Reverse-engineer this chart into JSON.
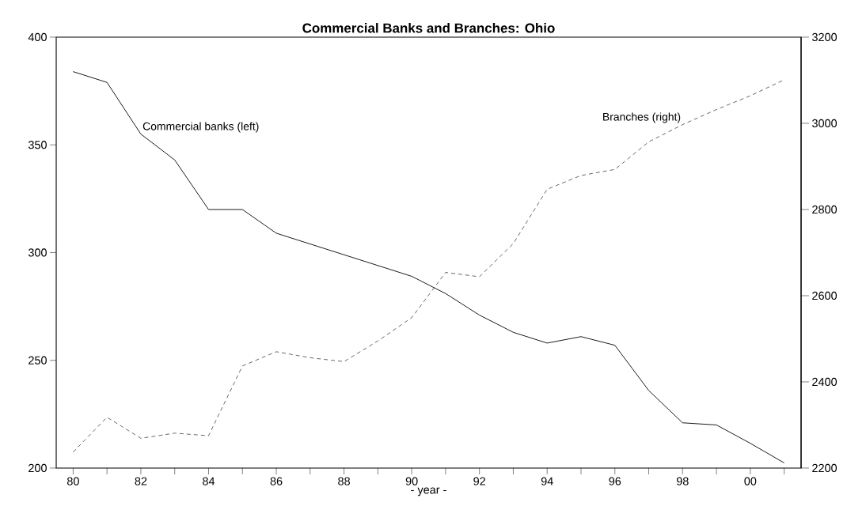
{
  "chart_data": {
    "type": "line",
    "title": "Commercial Banks and Branches: Ohio",
    "xlabel": "- year -",
    "x": [
      1980,
      1981,
      1982,
      1983,
      1984,
      1985,
      1986,
      1987,
      1988,
      1989,
      1990,
      1991,
      1992,
      1993,
      1994,
      1995,
      1996,
      1997,
      1998,
      1999,
      2000,
      2001
    ],
    "series": [
      {
        "name": "Commercial banks (left)",
        "color": "#000000",
        "line_style": "solid",
        "values": [
          384,
          379,
          355,
          343,
          320,
          320,
          309,
          304,
          299,
          294,
          289,
          281,
          271,
          263,
          258,
          261,
          257,
          236,
          221,
          220,
          211.5,
          202.4
        ]
      },
      {
        "name": "Branches (right)",
        "color": "#000000",
        "line_style": "dashed",
        "axis": "y2",
        "values": [
          2237,
          2318,
          2269,
          2281,
          2275,
          2437,
          2470,
          2456,
          2447,
          2495,
          2549,
          2654,
          2644,
          2721,
          2847,
          2879,
          2893,
          2957,
          2997,
          3032,
          3064,
          3101
        ]
      }
    ],
    "xlim": [
      1979.5,
      2001.5
    ],
    "xticks": [
      {
        "value": 1980,
        "label": "80"
      },
      {
        "value": 1981,
        "label": null
      },
      {
        "value": 1982,
        "label": "82"
      },
      {
        "value": 1983,
        "label": null
      },
      {
        "value": 1984,
        "label": "84"
      },
      {
        "value": 1985,
        "label": null
      },
      {
        "value": 1986,
        "label": "86"
      },
      {
        "value": 1987,
        "label": null
      },
      {
        "value": 1988,
        "label": "88"
      },
      {
        "value": 1989,
        "label": null
      },
      {
        "value": 1990,
        "label": "90"
      },
      {
        "value": 1991,
        "label": null
      },
      {
        "value": 1992,
        "label": "92"
      },
      {
        "value": 1993,
        "label": null
      },
      {
        "value": 1994,
        "label": "94"
      },
      {
        "value": 1995,
        "label": null
      },
      {
        "value": 1996,
        "label": "96"
      },
      {
        "value": 1997,
        "label": null
      },
      {
        "value": 1998,
        "label": "98"
      },
      {
        "value": 1999,
        "label": null
      },
      {
        "value": 2000,
        "label": "00"
      },
      {
        "value": 2001,
        "label": null
      }
    ],
    "ylim": [
      200,
      400
    ],
    "yticks": [
      200,
      250,
      300,
      350,
      400
    ],
    "y2lim": [
      2200,
      3200
    ],
    "y2ticks": [
      2200,
      2400,
      2600,
      2800,
      3000,
      3200
    ],
    "grid": false,
    "legend": false,
    "marker": "none"
  }
}
